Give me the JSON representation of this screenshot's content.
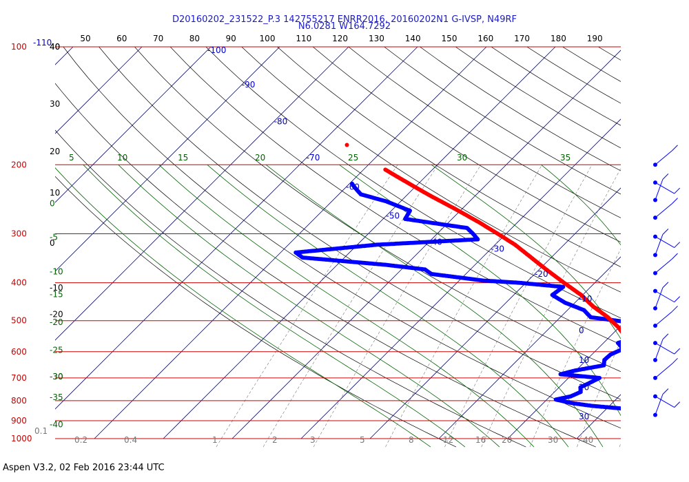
{
  "header": {
    "title_line1": "D20160202_231522_P.3 142755217 ENRR2016, 20160202N1 G-IVSP, N49RF",
    "title_line2": "N6.0281 W164.7292"
  },
  "footer": {
    "text": "Aspen V3.2, 02 Feb 2016  23:44 UTC"
  },
  "colors": {
    "title": "#1a1ac8",
    "isobar": "#cc0000",
    "isotherm": "#0000cc",
    "theta": "#000000",
    "theta_e": "#006400",
    "mixing_ratio": "#777777",
    "temperature_trace": "#ff0000",
    "dewpoint_trace": "#0000ff",
    "wind_barb": "#0000ff"
  },
  "chart_data": {
    "type": "skew-t",
    "title": "D20160202_231522_P.3 142755217 ENRR2016, 20160202N1 G-IVSP, N49RF / N6.0281 W164.7292",
    "grid": true,
    "legend": "none",
    "pressure_range_hPa": [
      1000,
      100
    ],
    "pressure_ticks": [
      "100",
      "200",
      "300",
      "400",
      "500",
      "600",
      "700",
      "800",
      "900",
      "1000"
    ],
    "altitude_labels": [
      {
        "p": 100,
        "text": "40"
      },
      {
        "p": 140,
        "text": "30"
      },
      {
        "p": 185,
        "text": "20"
      },
      {
        "p": 236,
        "text": "10"
      },
      {
        "p": 317,
        "text": "0"
      },
      {
        "p": 412,
        "text": "-10"
      },
      {
        "p": 482,
        "text": "-20"
      },
      {
        "p": 695,
        "text": "-30"
      }
    ],
    "isotherm_labels": [
      {
        "p": 102,
        "text": "-100"
      },
      {
        "p": 125,
        "text": "-90"
      },
      {
        "p": 155,
        "text": "-80"
      },
      {
        "p": 192,
        "text": "-70"
      },
      {
        "p": 228,
        "text": "-60"
      },
      {
        "p": 270,
        "text": "-50"
      },
      {
        "p": 315,
        "text": "-40"
      },
      {
        "p": 328,
        "text": "-30"
      },
      {
        "p": 380,
        "text": "-20"
      },
      {
        "p": 440,
        "text": "-10"
      },
      {
        "p": 530,
        "text": "0"
      },
      {
        "p": 630,
        "text": "10"
      },
      {
        "p": 740,
        "text": "20"
      },
      {
        "p": 878,
        "text": "30"
      }
    ],
    "theta_top_labels": [
      "-110",
      "40",
      "50",
      "60",
      "70",
      "80",
      "90",
      "100",
      "110",
      "120",
      "130",
      "140",
      "150",
      "160",
      "170",
      "180",
      "190"
    ],
    "theta_e_labels": [
      {
        "text": "5"
      },
      {
        "text": "10"
      },
      {
        "text": "15"
      },
      {
        "text": "20"
      },
      {
        "text": "25"
      },
      {
        "text": "30"
      },
      {
        "text": "35"
      }
    ],
    "left_green_labels": [
      "0",
      "-5",
      "-10",
      "-15",
      "-20",
      "-25",
      "-30",
      "-35",
      "-40"
    ],
    "mixing_ratio_labels": [
      "0.1",
      "0.2",
      "0.4",
      "1",
      "2",
      "3",
      "5",
      "8",
      "12",
      "16",
      "20",
      "30",
      "40"
    ],
    "temperature_profile": [
      {
        "p": 1000,
        "t": 27.5
      },
      {
        "p": 985,
        "t": 26.2
      },
      {
        "p": 960,
        "t": 25.5
      },
      {
        "p": 935,
        "t": 25.3
      },
      {
        "p": 915,
        "t": 24.6
      },
      {
        "p": 880,
        "t": 24.2
      },
      {
        "p": 855,
        "t": 27.3
      },
      {
        "p": 825,
        "t": 25.8
      },
      {
        "p": 790,
        "t": 22.9
      },
      {
        "p": 755,
        "t": 19.8
      },
      {
        "p": 730,
        "t": 17.8
      },
      {
        "p": 690,
        "t": 15.5
      },
      {
        "p": 660,
        "t": 13.1
      },
      {
        "p": 630,
        "t": 9.7
      },
      {
        "p": 600,
        "t": 6.3
      },
      {
        "p": 560,
        "t": 3.1
      },
      {
        "p": 520,
        "t": -0.1
      },
      {
        "p": 490,
        "t": -3.1
      },
      {
        "p": 460,
        "t": -6.8
      },
      {
        "p": 430,
        "t": -10.2
      },
      {
        "p": 400,
        "t": -14.5
      },
      {
        "p": 370,
        "t": -19.0
      },
      {
        "p": 345,
        "t": -22.9
      },
      {
        "p": 320,
        "t": -27.1
      },
      {
        "p": 300,
        "t": -31.2
      },
      {
        "p": 280,
        "t": -35.7
      },
      {
        "p": 260,
        "t": -40.8
      },
      {
        "p": 240,
        "t": -46.5
      },
      {
        "p": 220,
        "t": -52.4
      },
      {
        "p": 205,
        "t": -57.1
      }
    ],
    "temperature_isolated_point": {
      "p": 178,
      "t": -66.0
    },
    "dewpoint_profile": [
      {
        "p": 1000,
        "td": 21.5
      },
      {
        "p": 985,
        "td": 20.9
      },
      {
        "p": 965,
        "td": 20.1
      },
      {
        "p": 940,
        "td": 19.5
      },
      {
        "p": 915,
        "td": 19.5
      },
      {
        "p": 895,
        "td": 19.1
      },
      {
        "p": 875,
        "td": 19.6
      },
      {
        "p": 855,
        "td": 17.6
      },
      {
        "p": 840,
        "td": 13.0
      },
      {
        "p": 825,
        "td": 7.5
      },
      {
        "p": 812,
        "td": 4.2
      },
      {
        "p": 795,
        "td": 1.3
      },
      {
        "p": 780,
        "td": 3.0
      },
      {
        "p": 760,
        "td": 3.8
      },
      {
        "p": 740,
        "td": 3.1
      },
      {
        "p": 720,
        "td": 3.8
      },
      {
        "p": 700,
        "td": 4.5
      },
      {
        "p": 685,
        "td": -1.7
      },
      {
        "p": 670,
        "td": -0.1
      },
      {
        "p": 650,
        "td": 3.3
      },
      {
        "p": 630,
        "td": 2.6
      },
      {
        "p": 610,
        "td": 2.7
      },
      {
        "p": 590,
        "td": 3.7
      },
      {
        "p": 570,
        "td": 2.1
      },
      {
        "p": 550,
        "td": 4.1
      },
      {
        "p": 520,
        "td": 4.6
      },
      {
        "p": 505,
        "td": 0.8
      },
      {
        "p": 490,
        "td": -5.6
      },
      {
        "p": 470,
        "td": -7.6
      },
      {
        "p": 450,
        "td": -11.4
      },
      {
        "p": 430,
        "td": -14.4
      },
      {
        "p": 410,
        "td": -14.0
      },
      {
        "p": 400,
        "td": -21.1
      },
      {
        "p": 395,
        "td": -26.5
      },
      {
        "p": 380,
        "td": -35.0
      },
      {
        "p": 370,
        "td": -36.6
      },
      {
        "p": 360,
        "td": -43.0
      },
      {
        "p": 345,
        "td": -56.1
      },
      {
        "p": 335,
        "td": -57.8
      },
      {
        "p": 320,
        "td": -47.2
      },
      {
        "p": 310,
        "td": -33.3
      },
      {
        "p": 300,
        "td": -34.8
      },
      {
        "p": 290,
        "td": -36.5
      },
      {
        "p": 275,
        "td": -46.8
      },
      {
        "p": 262,
        "td": -47.3
      },
      {
        "p": 248,
        "td": -52.1
      },
      {
        "p": 238,
        "td": -56.8
      },
      {
        "p": 228,
        "td": -58.8
      },
      {
        "p": 222,
        "td": -59.9
      }
    ],
    "wind_barb_levels_hPa": [
      200,
      222,
      246,
      273,
      305,
      340,
      378,
      420,
      465,
      515,
      570,
      630,
      700,
      780,
      870
    ]
  }
}
